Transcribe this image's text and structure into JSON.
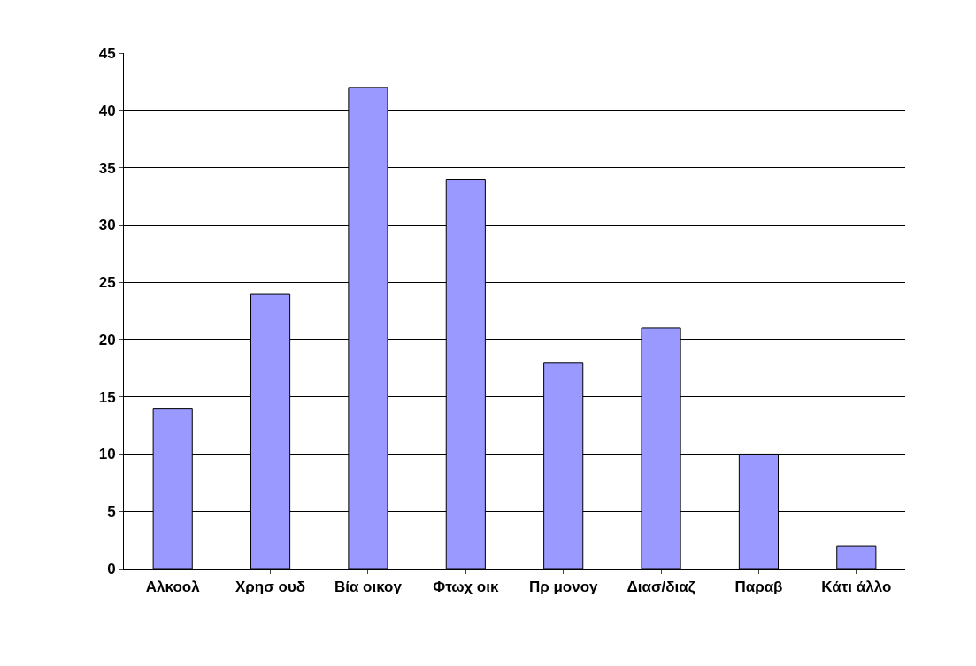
{
  "chart_data": {
    "type": "bar",
    "categories": [
      "Αλκοολ",
      "Χρησ ουδ",
      "Βία οικογ",
      "Φτωχ οικ",
      "Πρ μονογ",
      "Διασ/διαζ",
      "Παραβ",
      "Κάτι άλλο"
    ],
    "values": [
      14,
      24,
      42,
      34,
      18,
      21,
      10,
      2
    ],
    "color": "#9999ff",
    "ylim": [
      0,
      45
    ],
    "yticks": [
      0,
      5,
      10,
      15,
      20,
      25,
      30,
      35,
      40,
      45
    ],
    "grid": "y"
  }
}
